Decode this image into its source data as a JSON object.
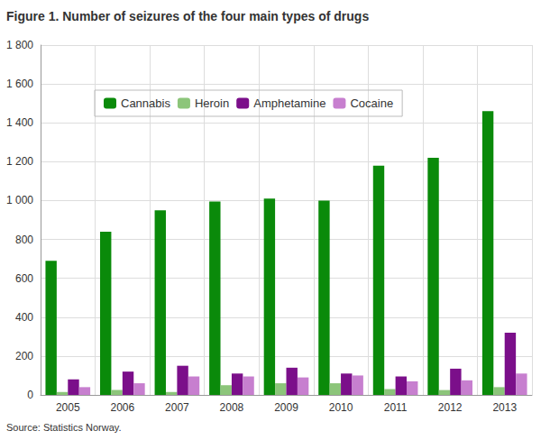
{
  "chart_data": {
    "type": "bar",
    "title": "Figure 1. Number of seizures of the four main types of drugs",
    "source": "Source: Statistics Norway.",
    "categories": [
      "2005",
      "2006",
      "2007",
      "2008",
      "2009",
      "2010",
      "2011",
      "2012",
      "2013"
    ],
    "series": [
      {
        "name": "Cannabis",
        "color": "#0a8a0a",
        "values": [
          690,
          840,
          950,
          995,
          1010,
          1000,
          1180,
          1220,
          1460
        ]
      },
      {
        "name": "Heroin",
        "color": "#8cc57a",
        "values": [
          15,
          25,
          15,
          50,
          60,
          60,
          30,
          25,
          40
        ]
      },
      {
        "name": "Amphetamine",
        "color": "#7b0f8a",
        "values": [
          80,
          120,
          150,
          110,
          140,
          110,
          95,
          135,
          320
        ]
      },
      {
        "name": "Cocaine",
        "color": "#c77fcf",
        "values": [
          40,
          60,
          95,
          95,
          90,
          100,
          70,
          75,
          110
        ]
      }
    ],
    "ylim": [
      0,
      1800
    ],
    "yticks": [
      0,
      200,
      400,
      600,
      800,
      {
        "value": 1000,
        "label": "1 000"
      },
      {
        "value": 1200,
        "label": "1 200"
      },
      {
        "value": 1400,
        "label": "1 400"
      },
      {
        "value": 1600,
        "label": "1 600"
      },
      {
        "value": 1800,
        "label": "1 800"
      }
    ],
    "grid": true,
    "legend": "top-left"
  }
}
